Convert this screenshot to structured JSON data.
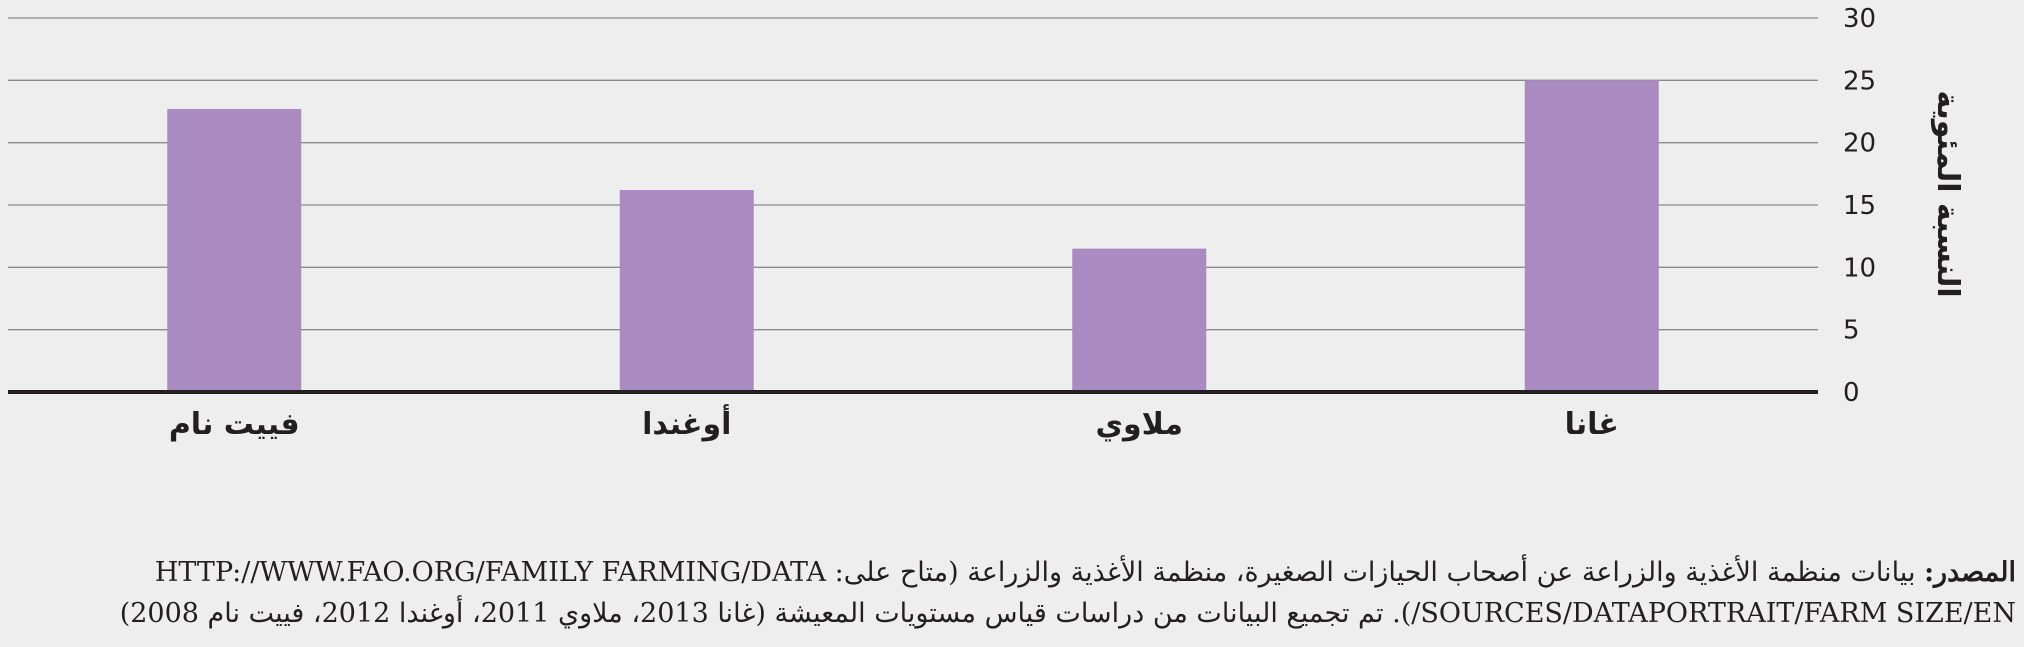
{
  "chart_data": {
    "type": "bar",
    "categories": [
      "غانا",
      "ملاوي",
      "أوغندا",
      "فييت نام"
    ],
    "values": [
      25,
      11.5,
      16.2,
      22.7
    ],
    "ylabel": "النسبة المئوية",
    "ylim": [
      0,
      30
    ],
    "yticks": [
      0,
      5,
      10,
      15,
      20,
      25,
      30
    ],
    "grid": true,
    "bar_color": "#a98bc2",
    "axis_side": "right"
  },
  "source": {
    "label": "المصدر:",
    "text": "بيانات منظمة الأغذية والزراعة عن أصحاب الحيازات الصغيرة، منظمة الأغذية والزراعة (متاح على: HTTP://WWW.FAO.ORG/FAMILY FARMING/DATA SOURCES/DATAPORTRAIT/FARM SIZE/EN/). تم تجميع البيانات من دراسات قياس مستويات المعيشة (غانا 2013، ملاوي 2011، أوغندا 2012، فييت نام 2008)"
  }
}
